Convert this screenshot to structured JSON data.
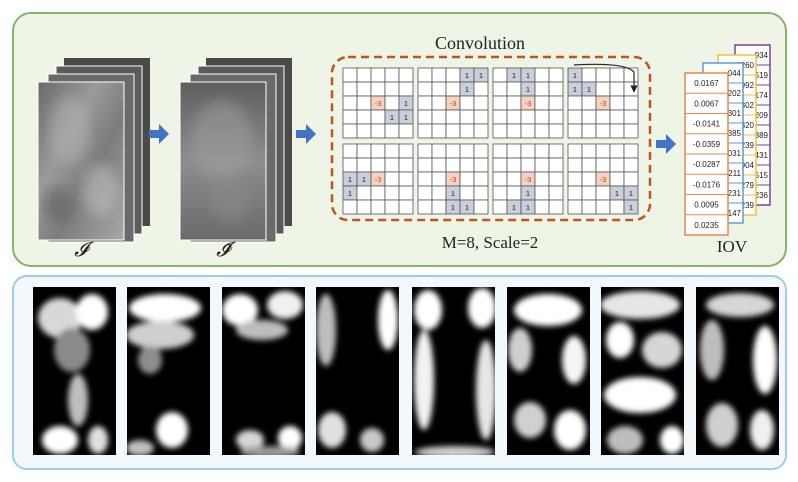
{
  "top_panel": {
    "stack_label_1": "𝓘",
    "stack_label_2": "𝓘̃",
    "conv_title": "Convolution",
    "conv_caption": "M=8, Scale=2",
    "iov_label": "IOV",
    "center_value": "-3",
    "neighbor_value": "1",
    "iov_front_values": [
      "0.0167",
      "0.0067",
      "-0.0141",
      "-0.0359",
      "-0.0287",
      "-0.0176",
      "0.0095",
      "0.0235"
    ],
    "iov_card2_values": [
      "044",
      "202",
      "301",
      "385",
      "031",
      "1211",
      "1231",
      "147"
    ],
    "iov_card3_values": [
      "1260",
      "0992",
      "302",
      "320",
      "239",
      "904",
      "279",
      "239"
    ],
    "iov_card4_values": [
      "934",
      "519",
      "174",
      "209",
      "389",
      "431",
      "515",
      "236"
    ],
    "iov_card_colors": [
      "#e8894a",
      "#5b9bd5",
      "#f2c037",
      "#7a3fa0"
    ]
  },
  "colors": {
    "top_panel_bg": "#eef4e6",
    "top_panel_border": "#86b56a",
    "bottom_panel_bg": "#f2f8fc",
    "bottom_panel_border": "#9dd0e2",
    "dashed_border": "#c0561a",
    "arrow": "#4472c4",
    "center_cell": "#f6d3c1",
    "neighbor_cell": "#c9d0dc"
  },
  "kernels": [
    {
      "neighbors": [
        [
          2,
          4
        ],
        [
          3,
          3
        ],
        [
          3,
          4
        ]
      ]
    },
    {
      "neighbors": [
        [
          0,
          3
        ],
        [
          0,
          4
        ],
        [
          1,
          3
        ]
      ]
    },
    {
      "neighbors": [
        [
          0,
          1
        ],
        [
          0,
          2
        ],
        [
          1,
          2
        ]
      ]
    },
    {
      "neighbors": [
        [
          0,
          0
        ],
        [
          1,
          0
        ],
        [
          1,
          1
        ]
      ]
    },
    {
      "neighbors": [
        [
          2,
          0
        ],
        [
          2,
          1
        ],
        [
          3,
          0
        ]
      ]
    },
    {
      "neighbors": [
        [
          3,
          2
        ],
        [
          4,
          2
        ],
        [
          4,
          3
        ]
      ]
    },
    {
      "neighbors": [
        [
          3,
          2
        ],
        [
          4,
          1
        ],
        [
          4,
          2
        ]
      ]
    },
    {
      "neighbors": [
        [
          3,
          3
        ],
        [
          3,
          4
        ],
        [
          4,
          4
        ]
      ]
    }
  ]
}
